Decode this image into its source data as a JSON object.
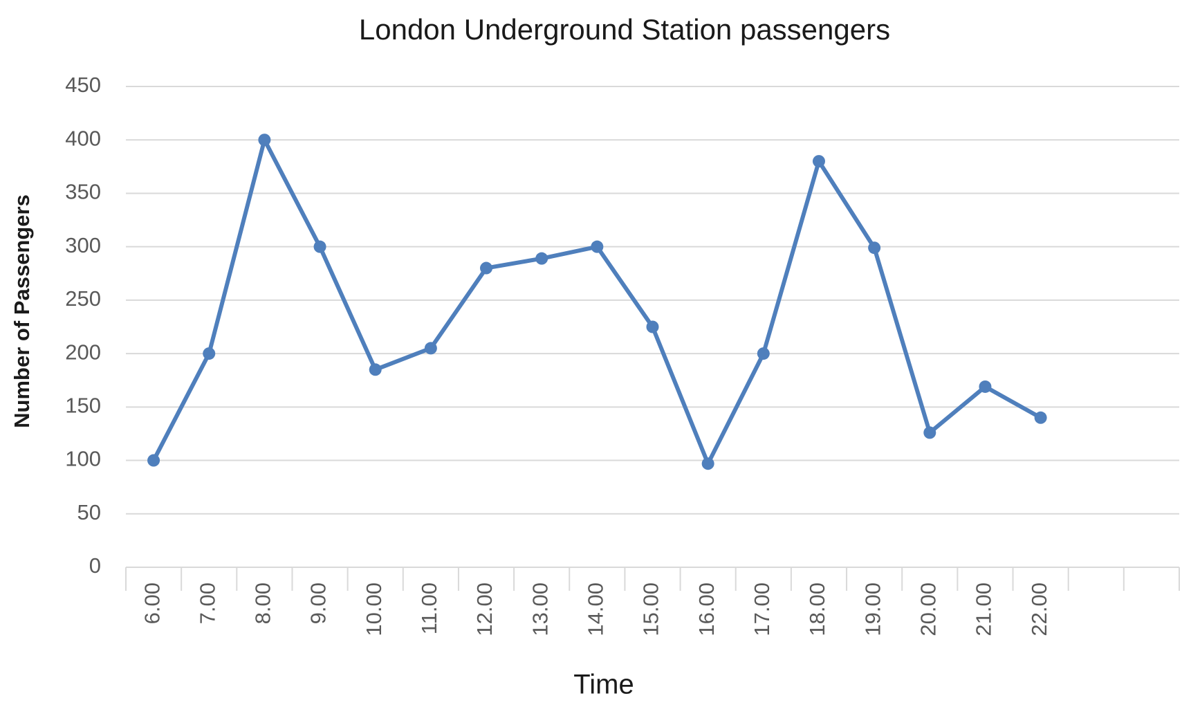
{
  "chart_data": {
    "type": "line",
    "title": "London Underground Station passengers",
    "x_label": "Time",
    "y_label": "Number of Passengers",
    "categories": [
      "6.00",
      "7.00",
      "8.00",
      "9.00",
      "10.00",
      "11.00",
      "12.00",
      "13.00",
      "14.00",
      "15.00",
      "16.00",
      "17.00",
      "18.00",
      "19.00",
      "20.00",
      "21.00",
      "22.00",
      null,
      null
    ],
    "series": [
      {
        "name": "Passengers",
        "color": "#4f7fbc",
        "values": [
          100,
          200,
          400,
          300,
          185,
          205,
          280,
          289,
          300,
          225,
          97,
          200,
          380,
          299,
          126,
          169,
          140,
          null,
          null
        ]
      }
    ],
    "ylim": [
      0,
      450
    ],
    "yticks": [
      0,
      50,
      100,
      150,
      200,
      250,
      300,
      350,
      400,
      450
    ],
    "grid": true,
    "markers": true
  }
}
